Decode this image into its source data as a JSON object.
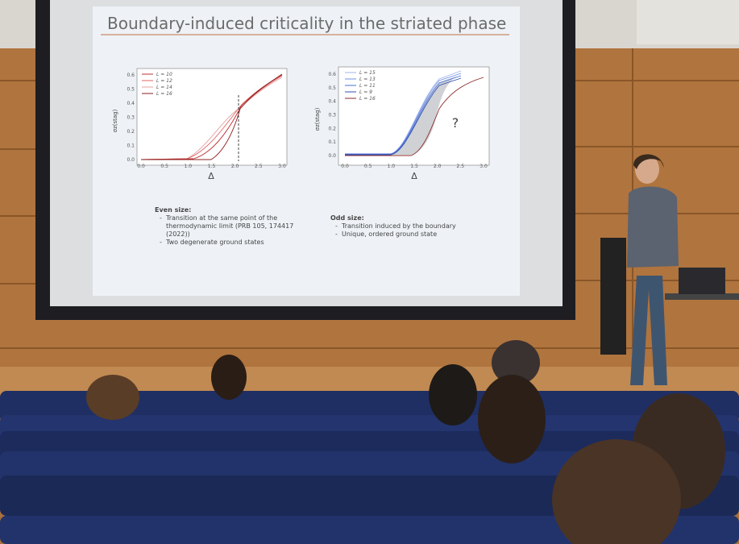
{
  "slide": {
    "title": "Boundary-induced criticality in the striated phase",
    "left_plot": {
      "legend": [
        "L = 10",
        "L = 12",
        "L = 14",
        "L = 16"
      ],
      "x_ticks": [
        "0.0",
        "0.5",
        "1.0",
        "1.5",
        "2.0",
        "2.5",
        "3.0"
      ],
      "y_ticks": [
        "0.0",
        "0.1",
        "0.2",
        "0.3",
        "0.4",
        "0.5",
        "0.6"
      ],
      "x_label": "Δ",
      "y_label": "σz(stag)"
    },
    "right_plot": {
      "legend": [
        "L = 15",
        "L = 13",
        "L = 11",
        "L = 9",
        "L = 16"
      ],
      "x_ticks": [
        "0.0",
        "0.5",
        "1.0",
        "1.5",
        "2.0",
        "2.5",
        "3.0"
      ],
      "y_ticks": [
        "0.0",
        "0.1",
        "0.2",
        "0.3",
        "0.4",
        "0.5",
        "0.6"
      ],
      "x_label": "Δ",
      "y_label": "σz(stag)",
      "annotation": "?"
    },
    "notes_left": {
      "heading": "Even size:",
      "items": [
        "Transition at the same point of the thermodynamic limit (PRB 105, 174417 (2022))",
        "Two degenerate ground states"
      ]
    },
    "notes_right": {
      "heading": "Odd size:",
      "items": [
        "Transition induced by the boundary",
        "Unique, ordered ground state"
      ]
    }
  }
}
